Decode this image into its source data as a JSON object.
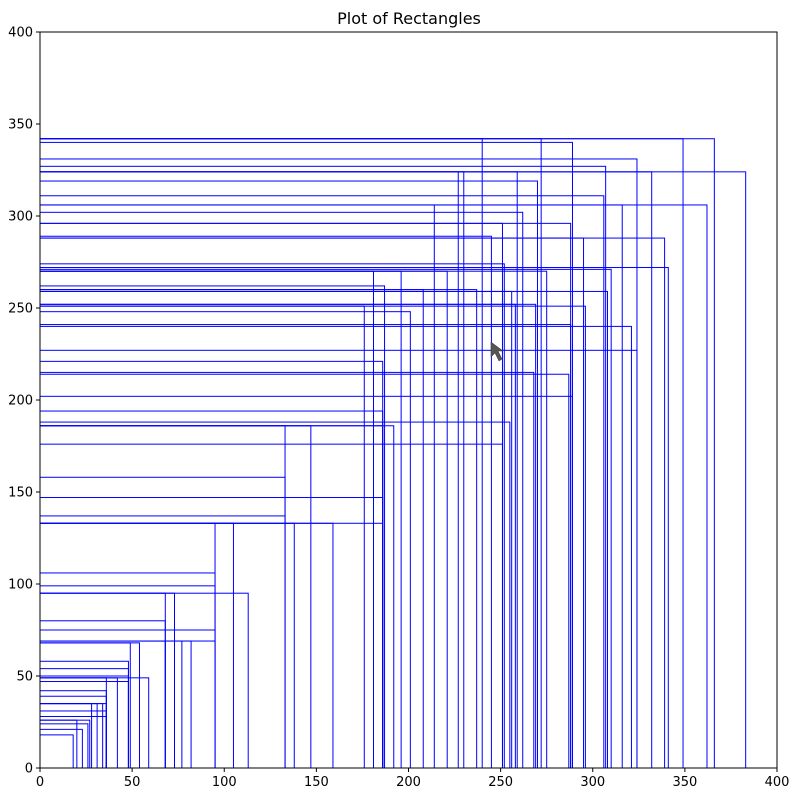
{
  "chart_data": {
    "type": "rectangles",
    "title": "Plot of Rectangles",
    "xlabel": "",
    "ylabel": "",
    "xlim": [
      0,
      400
    ],
    "ylim": [
      0,
      400
    ],
    "grid": false,
    "x_ticks": [
      "0",
      "50",
      "100",
      "150",
      "200",
      "250",
      "300",
      "350",
      "400"
    ],
    "y_ticks": [
      "0",
      "50",
      "100",
      "150",
      "200",
      "250",
      "300",
      "350",
      "400"
    ],
    "edge_color": "#0000ff",
    "rectangles": [
      [
        383,
        324
      ],
      [
        366,
        342
      ],
      [
        362,
        306
      ],
      [
        349,
        342
      ],
      [
        341,
        272
      ],
      [
        339,
        288
      ],
      [
        332,
        324
      ],
      [
        324,
        331
      ],
      [
        324,
        227
      ],
      [
        321,
        240
      ],
      [
        316,
        306
      ],
      [
        310,
        271
      ],
      [
        308,
        259
      ],
      [
        307,
        327
      ],
      [
        306,
        311
      ],
      [
        296,
        251
      ],
      [
        295,
        288
      ],
      [
        289,
        340
      ],
      [
        289,
        202
      ],
      [
        288,
        296
      ],
      [
        288,
        241
      ],
      [
        287,
        214
      ],
      [
        275,
        270
      ],
      [
        272,
        342
      ],
      [
        270,
        319
      ],
      [
        269,
        252
      ],
      [
        268,
        215
      ],
      [
        262,
        302
      ],
      [
        259,
        324
      ],
      [
        258,
        252
      ],
      [
        256,
        259
      ],
      [
        255,
        188
      ],
      [
        252,
        274
      ],
      [
        251,
        296
      ],
      [
        251,
        176
      ],
      [
        245,
        289
      ],
      [
        240,
        342
      ],
      [
        237,
        260
      ],
      [
        230,
        324
      ],
      [
        227,
        324
      ],
      [
        221,
        270
      ],
      [
        214,
        306
      ],
      [
        208,
        260
      ],
      [
        201,
        248
      ],
      [
        196,
        270
      ],
      [
        192,
        186
      ],
      [
        187,
        262
      ],
      [
        186,
        186
      ],
      [
        181,
        270
      ],
      [
        176,
        251
      ],
      [
        186,
        221
      ],
      [
        186,
        194
      ],
      [
        186,
        147
      ],
      [
        186,
        133
      ],
      [
        159,
        133
      ],
      [
        147,
        186
      ],
      [
        138,
        133
      ],
      [
        133,
        186
      ],
      [
        133,
        158
      ],
      [
        133,
        137
      ],
      [
        113,
        95
      ],
      [
        105,
        133
      ],
      [
        95,
        133
      ],
      [
        95,
        106
      ],
      [
        95,
        99
      ],
      [
        95,
        75
      ],
      [
        95,
        69
      ],
      [
        82,
        69
      ],
      [
        77,
        69
      ],
      [
        73,
        95
      ],
      [
        68,
        95
      ],
      [
        68,
        80
      ],
      [
        68,
        69
      ],
      [
        59,
        49
      ],
      [
        54,
        68
      ],
      [
        49,
        68
      ],
      [
        48,
        58
      ],
      [
        48,
        54
      ],
      [
        48,
        50
      ],
      [
        48,
        47
      ],
      [
        42,
        49
      ],
      [
        36,
        49
      ],
      [
        36,
        42
      ],
      [
        36,
        39
      ],
      [
        36,
        35
      ],
      [
        36,
        31
      ],
      [
        36,
        28
      ],
      [
        34,
        35
      ],
      [
        31,
        35
      ],
      [
        28,
        35
      ],
      [
        27,
        26
      ],
      [
        26,
        24
      ],
      [
        23,
        21
      ],
      [
        20,
        26
      ],
      [
        18,
        18
      ]
    ]
  }
}
